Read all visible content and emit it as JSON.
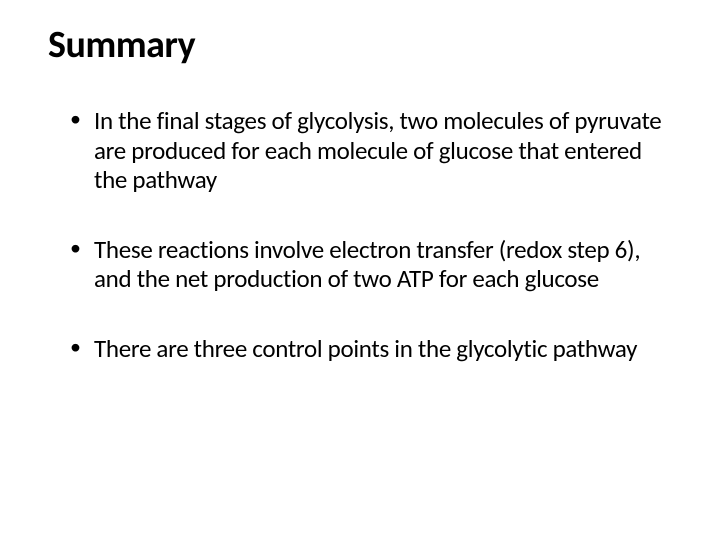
{
  "slide": {
    "title": "Summary",
    "bullets": [
      "In the final stages of glycolysis, two molecules of pyruvate are produced for each molecule of glucose that entered the pathway",
      "These reactions involve electron transfer (redox step 6), and the net production of two ATP for each glucose",
      "There are three control points in the glycolytic pathway"
    ],
    "styling": {
      "background_color": "#ffffff",
      "text_color": "#000000",
      "title_fontsize": 38,
      "title_fontweight": 700,
      "body_fontsize": 25,
      "font_family": "Calibri"
    }
  }
}
